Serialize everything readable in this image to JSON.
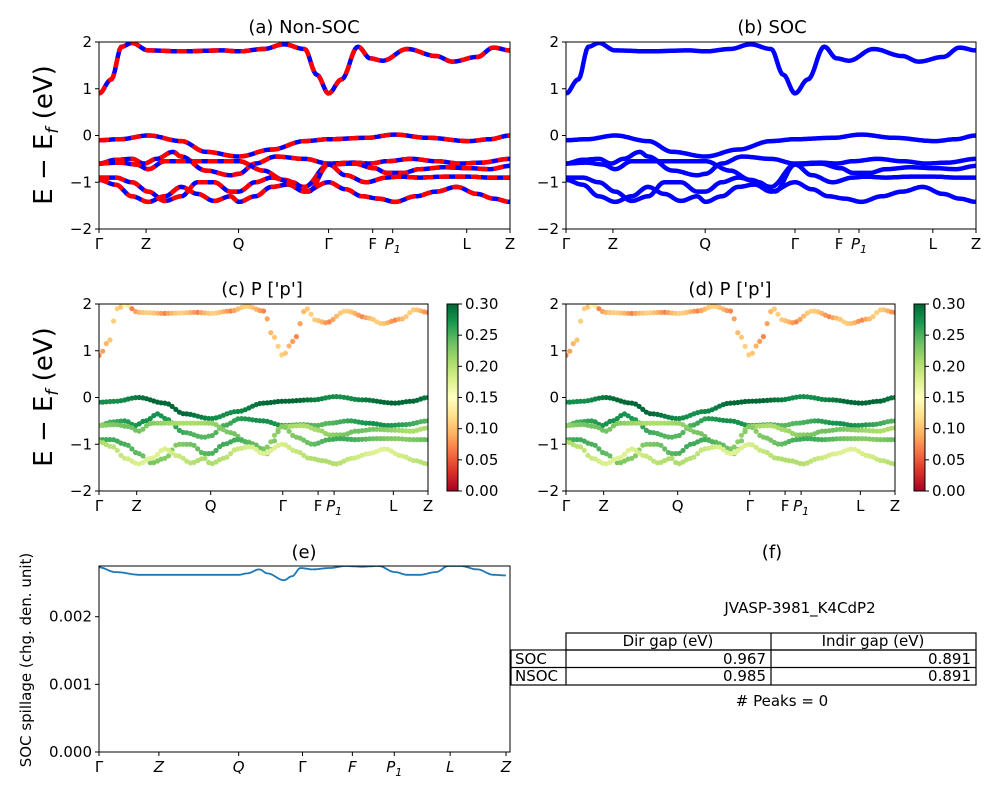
{
  "colors": {
    "nonsoc_a": "#0000ff",
    "nonsoc_b": "#ff0000",
    "soc": "#0000ff",
    "spillage": "#1f77b4",
    "cmap": "RdYlGn"
  },
  "chart_data": [
    {
      "id": "a",
      "type": "line",
      "title": "(a) Non-SOC",
      "ylabel": "E − E_f (eV)",
      "ylim": [
        -2,
        2
      ],
      "yticks": [
        "−2",
        "−1",
        "0",
        "1",
        "2"
      ],
      "xticks": [
        "Γ",
        "Z",
        "Q",
        "Γ",
        "F",
        "P1",
        "L",
        "Z"
      ],
      "k_positions": [
        0,
        0.1145,
        0.3395,
        0.5585,
        0.6659,
        0.7146,
        0.8947,
        1.0
      ],
      "series": [
        {
          "points": [
            [
              0,
              0.9
            ],
            [
              0.03,
              1.2
            ],
            [
              0.055,
              1.9
            ],
            [
              0.08,
              1.98
            ],
            [
              0.12,
              1.82
            ],
            [
              0.2,
              1.8
            ],
            [
              0.3,
              1.82
            ],
            [
              0.34,
              1.8
            ],
            [
              0.4,
              1.85
            ],
            [
              0.45,
              1.95
            ],
            [
              0.5,
              1.85
            ],
            [
              0.53,
              1.3
            ],
            [
              0.5585,
              0.9
            ],
            [
              0.59,
              1.2
            ],
            [
              0.63,
              1.9
            ],
            [
              0.66,
              1.65
            ],
            [
              0.69,
              1.6
            ],
            [
              0.75,
              1.85
            ],
            [
              0.82,
              1.7
            ],
            [
              0.86,
              1.58
            ],
            [
              0.92,
              1.68
            ],
            [
              0.96,
              1.88
            ],
            [
              1.0,
              1.82
            ]
          ]
        },
        {
          "points": [
            [
              0,
              -0.1
            ],
            [
              0.05,
              -0.08
            ],
            [
              0.12,
              0.0
            ],
            [
              0.2,
              -0.12
            ],
            [
              0.26,
              -0.35
            ],
            [
              0.34,
              -0.45
            ],
            [
              0.42,
              -0.3
            ],
            [
              0.5,
              -0.12
            ],
            [
              0.5585,
              -0.08
            ],
            [
              0.65,
              -0.05
            ],
            [
              0.72,
              0.02
            ],
            [
              0.8,
              -0.05
            ],
            [
              0.9,
              -0.12
            ],
            [
              0.95,
              -0.08
            ],
            [
              1.0,
              0.0
            ]
          ]
        },
        {
          "points": [
            [
              0,
              -0.6
            ],
            [
              0.04,
              -0.52
            ],
            [
              0.08,
              -0.5
            ],
            [
              0.11,
              -0.6
            ],
            [
              0.14,
              -0.5
            ],
            [
              0.18,
              -0.35
            ],
            [
              0.2,
              -0.45
            ],
            [
              0.26,
              -0.75
            ],
            [
              0.32,
              -0.85
            ],
            [
              0.34,
              -0.82
            ],
            [
              0.38,
              -0.6
            ],
            [
              0.43,
              -0.45
            ],
            [
              0.5,
              -0.5
            ],
            [
              0.5585,
              -0.6
            ],
            [
              0.62,
              -0.58
            ],
            [
              0.66,
              -0.6
            ],
            [
              0.7,
              -0.55
            ],
            [
              0.76,
              -0.5
            ],
            [
              0.82,
              -0.55
            ],
            [
              0.88,
              -0.6
            ],
            [
              0.93,
              -0.58
            ],
            [
              1.0,
              -0.5
            ]
          ]
        },
        {
          "points": [
            [
              0,
              -0.6
            ],
            [
              0.05,
              -0.58
            ],
            [
              0.09,
              -0.62
            ],
            [
              0.12,
              -0.72
            ],
            [
              0.16,
              -0.55
            ],
            [
              0.2,
              -0.55
            ],
            [
              0.24,
              -0.55
            ],
            [
              0.3,
              -0.55
            ],
            [
              0.34,
              -0.55
            ],
            [
              0.4,
              -0.75
            ],
            [
              0.45,
              -0.95
            ],
            [
              0.5,
              -1.1
            ],
            [
              0.5585,
              -0.62
            ],
            [
              0.62,
              -0.6
            ],
            [
              0.67,
              -0.7
            ],
            [
              0.7,
              -0.8
            ],
            [
              0.74,
              -0.8
            ],
            [
              0.78,
              -0.72
            ],
            [
              0.84,
              -0.68
            ],
            [
              0.9,
              -0.7
            ],
            [
              0.95,
              -0.72
            ],
            [
              1.0,
              -0.65
            ]
          ]
        },
        {
          "points": [
            [
              0,
              -0.9
            ],
            [
              0.04,
              -0.9
            ],
            [
              0.08,
              -1.0
            ],
            [
              0.12,
              -1.2
            ],
            [
              0.16,
              -1.4
            ],
            [
              0.2,
              -1.3
            ],
            [
              0.24,
              -1.0
            ],
            [
              0.28,
              -1.0
            ],
            [
              0.32,
              -1.2
            ],
            [
              0.34,
              -1.2
            ],
            [
              0.38,
              -1.0
            ],
            [
              0.42,
              -0.9
            ],
            [
              0.47,
              -1.0
            ],
            [
              0.51,
              -1.2
            ],
            [
              0.5585,
              -0.62
            ],
            [
              0.6,
              -0.85
            ],
            [
              0.65,
              -1.0
            ],
            [
              0.7,
              -0.9
            ],
            [
              0.73,
              -0.88
            ],
            [
              0.78,
              -0.9
            ],
            [
              0.84,
              -0.88
            ],
            [
              0.9,
              -0.88
            ],
            [
              0.95,
              -0.9
            ],
            [
              1.0,
              -0.9
            ]
          ]
        },
        {
          "points": [
            [
              0,
              -0.95
            ],
            [
              0.04,
              -1.05
            ],
            [
              0.08,
              -1.3
            ],
            [
              0.12,
              -1.42
            ],
            [
              0.16,
              -1.3
            ],
            [
              0.2,
              -1.1
            ],
            [
              0.24,
              -1.25
            ],
            [
              0.28,
              -1.4
            ],
            [
              0.32,
              -1.3
            ],
            [
              0.34,
              -1.42
            ],
            [
              0.38,
              -1.3
            ],
            [
              0.42,
              -1.1
            ],
            [
              0.46,
              -1.05
            ],
            [
              0.5,
              -1.2
            ],
            [
              0.5585,
              -1.0
            ],
            [
              0.6,
              -1.15
            ],
            [
              0.64,
              -1.3
            ],
            [
              0.68,
              -1.35
            ],
            [
              0.72,
              -1.42
            ],
            [
              0.77,
              -1.3
            ],
            [
              0.82,
              -1.2
            ],
            [
              0.87,
              -1.1
            ],
            [
              0.92,
              -1.25
            ],
            [
              0.96,
              -1.35
            ],
            [
              1.0,
              -1.42
            ]
          ]
        }
      ]
    },
    {
      "id": "b",
      "type": "line",
      "title": "(b) SOC",
      "ylim": [
        -2,
        2
      ],
      "yticks": [
        "−2",
        "−1",
        "0",
        "1",
        "2"
      ],
      "xticks": [
        "Γ",
        "Z",
        "Q",
        "Γ",
        "F",
        "P1",
        "L",
        "Z"
      ],
      "k_positions": [
        0,
        0.1145,
        0.3395,
        0.5585,
        0.6659,
        0.7146,
        0.8947,
        1.0
      ]
    },
    {
      "id": "c",
      "type": "scatter",
      "title": "(c)  P ['p']",
      "ylabel": "E − E_f (eV)",
      "ylim": [
        -2,
        2
      ],
      "yticks": [
        "−2",
        "−1",
        "0",
        "1",
        "2"
      ],
      "xticks": [
        "Γ",
        "Z",
        "Q",
        "Γ",
        "F",
        "P1",
        "L",
        "Z"
      ],
      "k_positions": [
        0,
        0.1145,
        0.3395,
        0.5585,
        0.6659,
        0.7146,
        0.8947,
        1.0
      ],
      "colorbar": {
        "min": 0.0,
        "max": 0.3,
        "ticks": [
          "0.00",
          "0.05",
          "0.10",
          "0.15",
          "0.20",
          "0.25",
          "0.30"
        ]
      },
      "band_weights": [
        0.1,
        0.29,
        0.26,
        0.22,
        0.24,
        0.19
      ]
    },
    {
      "id": "d",
      "type": "scatter",
      "title": "(d) P ['p']",
      "ylim": [
        -2,
        2
      ],
      "yticks": [
        "−2",
        "−1",
        "0",
        "1",
        "2"
      ],
      "xticks": [
        "Γ",
        "Z",
        "Q",
        "Γ",
        "F",
        "P1",
        "L",
        "Z"
      ],
      "k_positions": [
        0,
        0.1145,
        0.3395,
        0.5585,
        0.6659,
        0.7146,
        0.8947,
        1.0
      ],
      "colorbar": {
        "min": 0.0,
        "max": 0.3,
        "ticks": [
          "0.00",
          "0.05",
          "0.10",
          "0.15",
          "0.20",
          "0.25",
          "0.30"
        ]
      },
      "band_weights": [
        0.1,
        0.29,
        0.26,
        0.22,
        0.24,
        0.19
      ]
    },
    {
      "id": "e",
      "type": "line",
      "title": "(e)",
      "ylabel": "SOC spillage (chg. den. unit)",
      "ylim": [
        0,
        0.00275
      ],
      "yticks": [
        "0.000",
        "0.001",
        "0.002"
      ],
      "xticks": [
        "Γ",
        "Z",
        "Q",
        "Γ",
        "F",
        "P1",
        "L",
        "Z"
      ],
      "k_positions": [
        0,
        0.1457,
        0.3398,
        0.4951,
        0.6165,
        0.7184,
        0.8544,
        0.9903
      ],
      "series": [
        {
          "points": [
            [
              0,
              0.00273
            ],
            [
              0.04,
              0.00266
            ],
            [
              0.1,
              0.00262
            ],
            [
              0.2,
              0.00262
            ],
            [
              0.3,
              0.00262
            ],
            [
              0.34,
              0.00262
            ],
            [
              0.36,
              0.00264
            ],
            [
              0.39,
              0.0027
            ],
            [
              0.41,
              0.00264
            ],
            [
              0.45,
              0.00254
            ],
            [
              0.47,
              0.0026
            ],
            [
              0.49,
              0.00272
            ],
            [
              0.52,
              0.0027
            ],
            [
              0.56,
              0.00272
            ],
            [
              0.6,
              0.00275
            ],
            [
              0.64,
              0.00274
            ],
            [
              0.68,
              0.00275
            ],
            [
              0.72,
              0.00266
            ],
            [
              0.75,
              0.00262
            ],
            [
              0.78,
              0.00262
            ],
            [
              0.82,
              0.00266
            ],
            [
              0.85,
              0.00275
            ],
            [
              0.88,
              0.00275
            ],
            [
              0.92,
              0.0027
            ],
            [
              0.96,
              0.00262
            ],
            [
              0.99,
              0.00261
            ]
          ]
        }
      ]
    }
  ],
  "table_panel": {
    "title": "(f)",
    "material": "JVASP-3981_K4CdP2",
    "header": [
      "",
      "Dir gap (eV)",
      "Indir gap (eV)"
    ],
    "rows": [
      [
        "SOC",
        "0.967",
        "0.891"
      ],
      [
        "NSOC",
        "0.985",
        "0.891"
      ]
    ],
    "footer": "# Peaks = 0"
  }
}
